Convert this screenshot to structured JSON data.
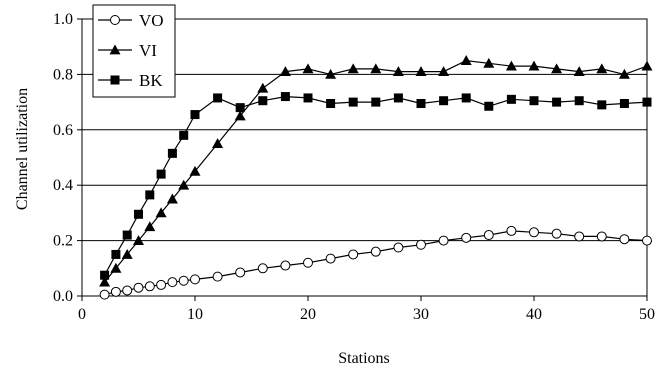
{
  "chart_data": {
    "type": "line",
    "xlabel": "Stations",
    "ylabel": "Channel utilization",
    "xlim": [
      0,
      50
    ],
    "ylim": [
      0.0,
      1.0
    ],
    "xticks": [
      "0",
      "10",
      "20",
      "30",
      "40",
      "50"
    ],
    "yticks": [
      "0.0",
      "0.2",
      "0.4",
      "0.6",
      "0.8",
      "1.0"
    ],
    "grid": "horizontal",
    "legend_position": "top-left",
    "series": [
      {
        "name": "VO",
        "marker": "circle-open",
        "x": [
          2,
          3,
          4,
          5,
          6,
          7,
          8,
          9,
          10,
          12,
          14,
          16,
          18,
          20,
          22,
          24,
          26,
          28,
          30,
          32,
          34,
          36,
          38,
          40,
          42,
          44,
          46,
          48,
          50
        ],
        "y": [
          0.005,
          0.015,
          0.02,
          0.03,
          0.035,
          0.04,
          0.05,
          0.055,
          0.06,
          0.07,
          0.085,
          0.1,
          0.11,
          0.12,
          0.135,
          0.15,
          0.16,
          0.175,
          0.185,
          0.2,
          0.21,
          0.22,
          0.235,
          0.23,
          0.225,
          0.215,
          0.215,
          0.205,
          0.2
        ]
      },
      {
        "name": "VI",
        "marker": "triangle-filled",
        "x": [
          2,
          3,
          4,
          5,
          6,
          7,
          8,
          9,
          10,
          12,
          14,
          16,
          18,
          20,
          22,
          24,
          26,
          28,
          30,
          32,
          34,
          36,
          38,
          40,
          42,
          44,
          46,
          48,
          50
        ],
        "y": [
          0.05,
          0.1,
          0.15,
          0.2,
          0.25,
          0.3,
          0.35,
          0.4,
          0.45,
          0.55,
          0.65,
          0.75,
          0.81,
          0.82,
          0.8,
          0.82,
          0.82,
          0.81,
          0.81,
          0.81,
          0.85,
          0.84,
          0.83,
          0.83,
          0.82,
          0.81,
          0.82,
          0.8,
          0.83
        ]
      },
      {
        "name": "BK",
        "marker": "square-filled",
        "x": [
          2,
          3,
          4,
          5,
          6,
          7,
          8,
          9,
          10,
          12,
          14,
          16,
          18,
          20,
          22,
          24,
          26,
          28,
          30,
          32,
          34,
          36,
          38,
          40,
          42,
          44,
          46,
          48,
          50
        ],
        "y": [
          0.075,
          0.15,
          0.22,
          0.295,
          0.365,
          0.44,
          0.515,
          0.58,
          0.655,
          0.715,
          0.68,
          0.705,
          0.72,
          0.715,
          0.695,
          0.7,
          0.7,
          0.715,
          0.695,
          0.705,
          0.715,
          0.685,
          0.71,
          0.705,
          0.7,
          0.705,
          0.69,
          0.695,
          0.7
        ]
      }
    ]
  }
}
